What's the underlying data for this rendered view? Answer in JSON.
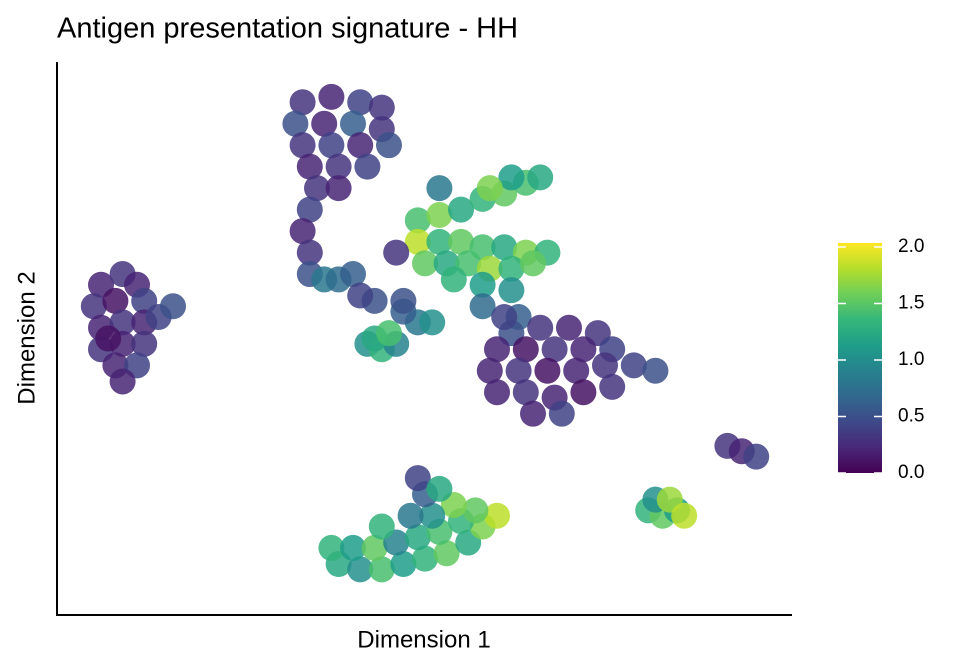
{
  "chart_data": {
    "type": "scatter",
    "title": "Antigen presentation signature - HH",
    "x_label": "Dimension 1",
    "y_label": "Dimension 2",
    "xlim": [
      0,
      100
    ],
    "ylim": [
      0,
      100
    ],
    "clim": [
      0,
      2
    ],
    "cticks": [
      {
        "value": 0,
        "label": "0.0"
      },
      {
        "value": 0.5,
        "label": "0.5"
      },
      {
        "value": 1,
        "label": "1.0"
      },
      {
        "value": 1.5,
        "label": "1.5"
      },
      {
        "value": 2,
        "label": "2.0"
      }
    ],
    "x": [
      5,
      8,
      10,
      4,
      7,
      11,
      5,
      8,
      11,
      13,
      15,
      5,
      8,
      11,
      7,
      10,
      8,
      6,
      33,
      37,
      41,
      44,
      32,
      36,
      40,
      44,
      33,
      37,
      41,
      45,
      34,
      38,
      42,
      35,
      38,
      34,
      33,
      34,
      34,
      36,
      38,
      40,
      49,
      52,
      55,
      58,
      61,
      64,
      66,
      62,
      59,
      49,
      52,
      55,
      58,
      61,
      64,
      67,
      50,
      53,
      56,
      59,
      62,
      65,
      54,
      58,
      62,
      52,
      58,
      63,
      42,
      44,
      46,
      43,
      45,
      49,
      51,
      47,
      43,
      62,
      66,
      70,
      74,
      60,
      64,
      68,
      72,
      76,
      59,
      63,
      67,
      71,
      75,
      79,
      82,
      60,
      64,
      68,
      72,
      76,
      65,
      69,
      61,
      38,
      41,
      44,
      47,
      50,
      53,
      56,
      58,
      60,
      37,
      40,
      43,
      46,
      49,
      52,
      55,
      57,
      54,
      51,
      48,
      44,
      50,
      49,
      52,
      81,
      83,
      85,
      82,
      84,
      86,
      92,
      94,
      96,
      41,
      47,
      46
    ],
    "y": [
      60,
      62,
      60,
      56,
      57,
      57,
      52,
      53,
      53,
      54,
      56,
      48,
      49,
      49,
      45,
      45,
      42,
      50,
      94,
      95,
      94,
      93,
      90,
      90,
      90,
      89,
      86,
      86,
      86,
      86,
      82,
      82,
      82,
      78,
      78,
      74,
      70,
      66,
      62,
      61,
      61,
      62,
      72,
      73,
      74,
      76,
      77,
      79,
      80,
      80,
      78,
      68,
      68,
      68,
      67,
      67,
      66,
      66,
      64,
      64,
      64,
      63,
      63,
      64,
      61,
      60,
      59,
      78,
      56,
      54,
      49,
      48,
      49,
      50,
      51,
      53,
      53,
      55,
      57,
      51,
      52,
      52,
      51,
      48,
      48,
      48,
      48,
      48,
      44,
      44,
      44,
      44,
      45,
      45,
      44,
      40,
      40,
      39,
      40,
      41,
      36,
      36,
      54,
      8,
      7,
      7,
      8,
      9,
      10,
      12,
      15,
      17,
      11,
      11,
      11,
      12,
      13,
      14,
      16,
      18,
      19,
      17,
      17,
      15,
      21,
      24,
      22,
      18,
      17,
      18,
      20,
      20,
      17,
      30,
      29,
      28,
      58,
      57,
      66
    ],
    "values": [
      0.2,
      0.3,
      0.2,
      0.3,
      0.1,
      0.4,
      0.2,
      0.3,
      0.2,
      0.4,
      0.5,
      0.3,
      0.2,
      0.3,
      0.2,
      0.4,
      0.2,
      0.1,
      0.3,
      0.2,
      0.4,
      0.3,
      0.5,
      0.2,
      0.6,
      0.3,
      0.3,
      0.4,
      0.2,
      0.5,
      0.2,
      0.3,
      0.4,
      0.3,
      0.2,
      0.4,
      0.2,
      0.3,
      0.5,
      0.8,
      0.7,
      0.6,
      1.4,
      1.6,
      1.2,
      1.3,
      1.5,
      1.4,
      1.2,
      1.1,
      1.6,
      1.8,
      1.3,
      1.5,
      1.4,
      1.2,
      1.6,
      1.3,
      1.5,
      1.2,
      1.4,
      1.7,
      1.3,
      1.5,
      1.3,
      1.1,
      1.0,
      0.8,
      0.7,
      0.6,
      1.0,
      1.3,
      0.9,
      1.2,
      1.4,
      0.8,
      1.0,
      0.6,
      0.5,
      0.5,
      0.3,
      0.2,
      0.3,
      0.2,
      0.1,
      0.3,
      0.2,
      0.4,
      0.2,
      0.3,
      0.1,
      0.2,
      0.3,
      0.4,
      0.5,
      0.2,
      0.3,
      0.2,
      0.1,
      0.3,
      0.2,
      0.4,
      0.4,
      1.2,
      1.0,
      1.4,
      1.1,
      1.3,
      1.5,
      1.2,
      1.6,
      1.8,
      1.3,
      1.1,
      1.5,
      0.9,
      1.2,
      1.4,
      1.3,
      1.5,
      1.6,
      1.0,
      0.8,
      1.3,
      0.6,
      0.4,
      1.2,
      1.3,
      1.5,
      1.1,
      1.0,
      1.7,
      1.8,
      0.3,
      0.2,
      0.4,
      0.4,
      0.5,
      0.3
    ]
  }
}
